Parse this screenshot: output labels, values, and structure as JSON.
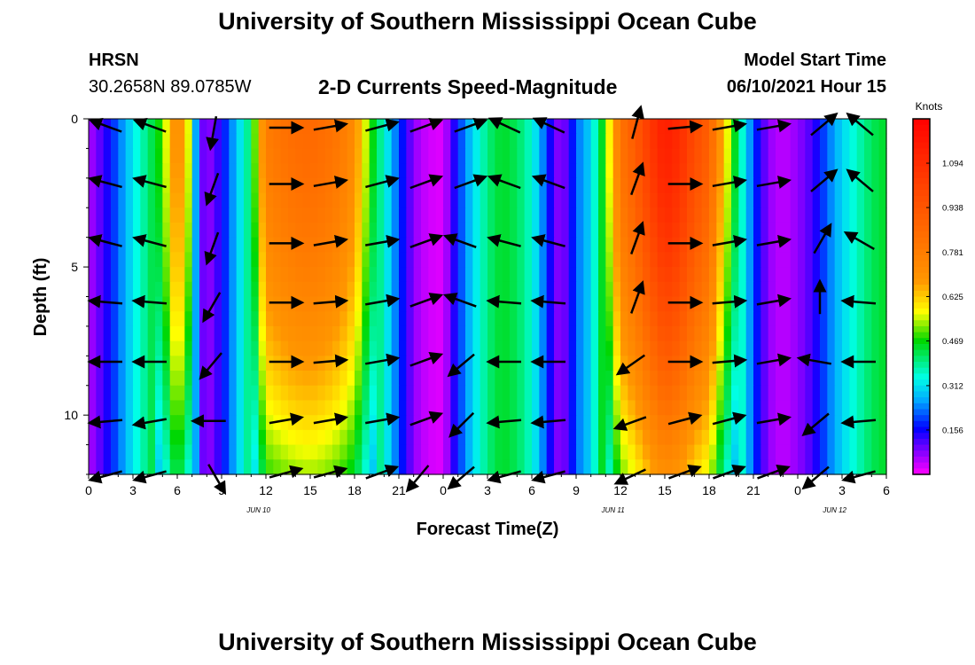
{
  "header": {
    "top_title": "University of Southern Mississippi Ocean Cube",
    "bottom_title": "University of Southern Mississippi Ocean Cube",
    "station": "HRSN",
    "coordinates": "30.2658N  89.0785W",
    "model_start_label": "Model Start Time",
    "model_start_value": "06/10/2021 Hour 15"
  },
  "chart_data": {
    "type": "heatmap",
    "title": "2-D Currents Speed-Magnitude",
    "xlabel": "Forecast Time(Z)",
    "ylabel": "Depth (ft)",
    "x_range_hours": [
      0,
      54
    ],
    "y_range_ft": [
      0,
      12
    ],
    "y_ticks": [
      "0",
      "5",
      "10"
    ],
    "x_ticks": [
      "0",
      "3",
      "6",
      "9",
      "12",
      "15",
      "18",
      "21",
      "0",
      "3",
      "6",
      "9",
      "12",
      "15",
      "18",
      "21",
      "0",
      "3",
      "6"
    ],
    "date_labels": [
      {
        "text": "JUN 10",
        "hour": 11.5
      },
      {
        "text": "JUN 11",
        "hour": 35.5
      },
      {
        "text": "JUN 12",
        "hour": 50.5
      }
    ],
    "colorbar": {
      "title": "Knots",
      "min": 0.0,
      "max": 1.25,
      "tick_labels": [
        "1.094",
        "0.938",
        "0.781",
        "0.625",
        "0.469",
        "0.312",
        "0.156"
      ],
      "tick_values": [
        1.094,
        0.938,
        0.781,
        0.625,
        0.469,
        0.312,
        0.156
      ]
    },
    "speed_profile_surface": [
      [
        0,
        0.05
      ],
      [
        1,
        0.12
      ],
      [
        2,
        0.22
      ],
      [
        3,
        0.32
      ],
      [
        4,
        0.4
      ],
      [
        5,
        0.5
      ],
      [
        6,
        0.75
      ],
      [
        6.8,
        0.55
      ],
      [
        7.5,
        0.1
      ],
      [
        8.3,
        0.08
      ],
      [
        9,
        0.15
      ],
      [
        10,
        0.28
      ],
      [
        11,
        0.42
      ],
      [
        12,
        0.78
      ],
      [
        13,
        0.82
      ],
      [
        14,
        0.85
      ],
      [
        15,
        0.86
      ],
      [
        16,
        0.84
      ],
      [
        17,
        0.8
      ],
      [
        18,
        0.72
      ],
      [
        19,
        0.5
      ],
      [
        20,
        0.35
      ],
      [
        21,
        0.2
      ],
      [
        22,
        0.07
      ],
      [
        23,
        0.03
      ],
      [
        24,
        0.02
      ],
      [
        25,
        0.18
      ],
      [
        26,
        0.3
      ],
      [
        27,
        0.4
      ],
      [
        28,
        0.45
      ],
      [
        29,
        0.42
      ],
      [
        30,
        0.35
      ],
      [
        31,
        0.2
      ],
      [
        31.6,
        0.08
      ],
      [
        32.4,
        0.1
      ],
      [
        33,
        0.22
      ],
      [
        34,
        0.3
      ],
      [
        35,
        0.5
      ],
      [
        36,
        0.82
      ],
      [
        37,
        0.92
      ],
      [
        38,
        1.05
      ],
      [
        39,
        1.15
      ],
      [
        40,
        1.1
      ],
      [
        41,
        0.98
      ],
      [
        42,
        0.9
      ],
      [
        43,
        0.62
      ],
      [
        44,
        0.4
      ],
      [
        45,
        0.2
      ],
      [
        46,
        0.07
      ],
      [
        47,
        0.04
      ],
      [
        48,
        0.07
      ],
      [
        49,
        0.12
      ],
      [
        50,
        0.22
      ],
      [
        51,
        0.3
      ],
      [
        52,
        0.36
      ],
      [
        53,
        0.42
      ],
      [
        54,
        0.45
      ]
    ],
    "arrow_columns": [
      1.5,
      4.5,
      8.5,
      13,
      16,
      19.5,
      22.5,
      25.5,
      28.5,
      31.5,
      37,
      40,
      43,
      46,
      49.5,
      52.5
    ],
    "arrow_depths": [
      0.3,
      2.2,
      4.2,
      6.2,
      8.2,
      10.2,
      12
    ],
    "arrow_directions_deg": [
      [
        160,
        160,
        260,
        0,
        10,
        15,
        20,
        20,
        155,
        155,
        75,
        5,
        10,
        10,
        40,
        140
      ],
      [
        165,
        165,
        250,
        0,
        10,
        15,
        20,
        20,
        160,
        160,
        70,
        0,
        10,
        10,
        40,
        140
      ],
      [
        165,
        165,
        250,
        0,
        10,
        10,
        20,
        160,
        165,
        165,
        70,
        0,
        10,
        10,
        60,
        150
      ],
      [
        175,
        175,
        240,
        0,
        5,
        10,
        20,
        160,
        175,
        175,
        70,
        0,
        5,
        10,
        90,
        175
      ],
      [
        180,
        180,
        230,
        0,
        5,
        10,
        20,
        220,
        180,
        180,
        215,
        0,
        5,
        10,
        170,
        180
      ],
      [
        185,
        190,
        180,
        10,
        10,
        10,
        20,
        225,
        185,
        185,
        200,
        15,
        15,
        10,
        220,
        185
      ],
      [
        195,
        195,
        300,
        15,
        15,
        20,
        230,
        220,
        195,
        195,
        205,
        20,
        20,
        20,
        220,
        195
      ]
    ]
  }
}
